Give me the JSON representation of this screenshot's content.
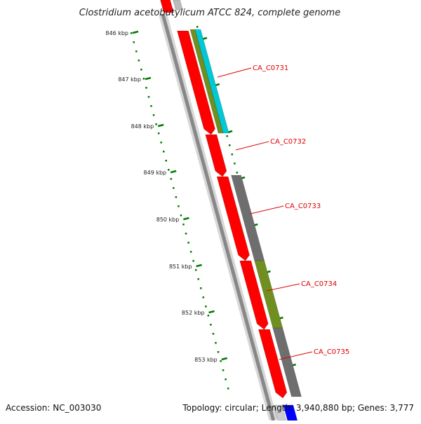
{
  "title": "Clostridium acetobutylicum ATCC 824, complete genome",
  "accession": "Accession: NC_003030",
  "topology": "Topology: circular; Length: 3,940,880 bp; Genes: 3,777",
  "colors": {
    "backbone": "#888888",
    "cds": "#ff0000",
    "cds_dark": "#cc0000",
    "gray_feature": "#6e6e6e",
    "olive_feature": "#6f8f20",
    "cyan_feature": "#00c8d8",
    "blue_feature": "#0000ff",
    "tick": "#007a00",
    "label": "#e00000"
  },
  "ticks": [
    "846 kbp",
    "847 kbp",
    "848 kbp",
    "849 kbp",
    "850 kbp",
    "851 kbp",
    "852 kbp",
    "853 kbp"
  ],
  "genes": [
    {
      "label": "CA_C0731"
    },
    {
      "label": "CA_C0732"
    },
    {
      "label": "CA_C0733"
    },
    {
      "label": "CA_C0734"
    },
    {
      "label": "CA_C0735"
    }
  ]
}
